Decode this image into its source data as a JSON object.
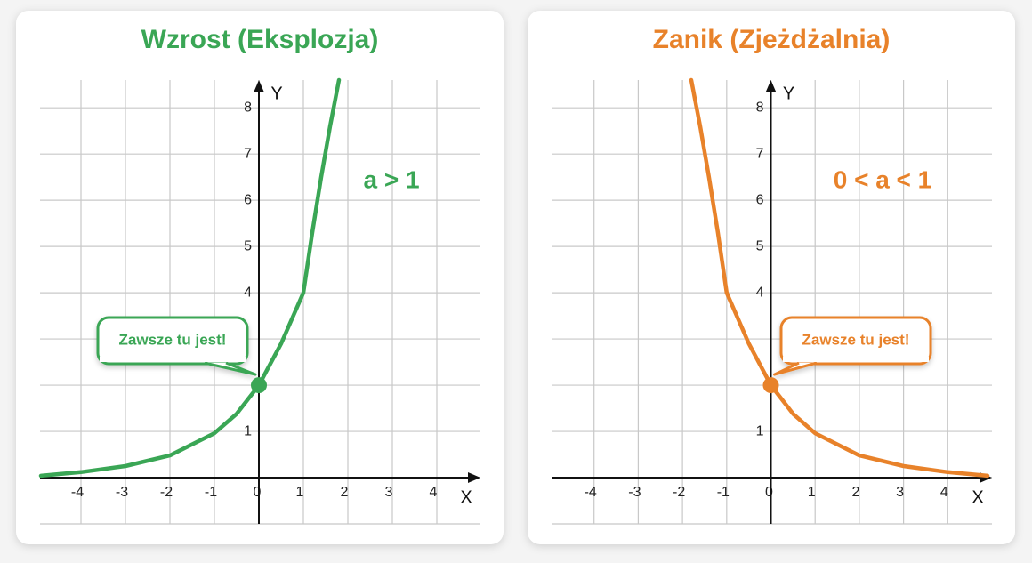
{
  "chart_data": [
    {
      "type": "line",
      "title": "Wzrost (Eksplozja)",
      "annotation": "a > 1",
      "color": "#3aa655",
      "x_label": "X",
      "y_label": "Y",
      "x": [
        -4.9,
        -4,
        -3,
        -2,
        -1,
        -0.5,
        0,
        0.5,
        1,
        1.2,
        1.4,
        1.6,
        1.8
      ],
      "values": [
        0.04,
        0.12,
        0.25,
        0.48,
        0.96,
        1.38,
        2,
        2.9,
        4,
        5.3,
        6.5,
        7.6,
        8.6
      ],
      "xlim": [
        -4.92,
        4.98
      ],
      "ylim": [
        -1,
        8.6
      ],
      "xticks": [
        -4,
        -3,
        -2,
        -1,
        0,
        1,
        2,
        3,
        4
      ],
      "yticks": [
        {
          "value": -1,
          "label": null
        },
        {
          "value": 0,
          "label": null
        },
        1,
        {
          "value": 2,
          "label": null
        },
        {
          "value": 3,
          "label": null
        },
        4,
        5,
        6,
        7,
        8
      ],
      "highlight": {
        "x": 0,
        "y": 2,
        "label": "Zawsze tu jest!"
      },
      "grid": true
    },
    {
      "type": "line",
      "title": "Zanik (Zjeżdżalnia)",
      "annotation": "0 < a < 1",
      "color": "#e8822a",
      "x_label": "X",
      "y_label": "Y",
      "x": [
        -1.8,
        -1.6,
        -1.4,
        -1.2,
        -1,
        -0.5,
        0,
        0.5,
        1,
        2,
        3,
        4,
        4.9
      ],
      "values": [
        8.6,
        7.6,
        6.5,
        5.3,
        4,
        2.9,
        2,
        1.38,
        0.96,
        0.48,
        0.25,
        0.12,
        0.04
      ],
      "xlim": [
        -4.96,
        5
      ],
      "ylim": [
        -1,
        8.6
      ],
      "xticks": [
        -4,
        -3,
        -2,
        -1,
        0,
        1,
        2,
        3,
        4
      ],
      "yticks": [
        {
          "value": -1,
          "label": null
        },
        {
          "value": 0,
          "label": null
        },
        1,
        {
          "value": 2,
          "label": null
        },
        {
          "value": 3,
          "label": null
        },
        4,
        5,
        6,
        7,
        8
      ],
      "highlight": {
        "x": 0,
        "y": 2,
        "label": "Zawsze tu jest!"
      },
      "grid": true
    }
  ]
}
